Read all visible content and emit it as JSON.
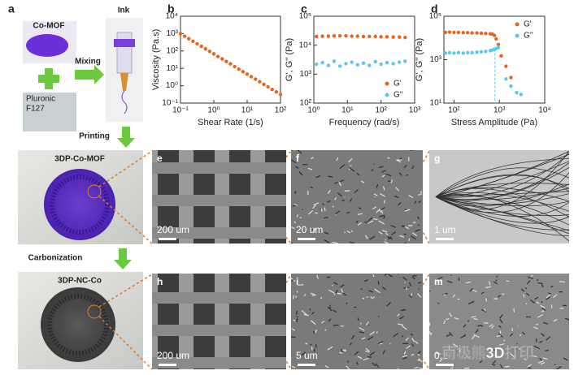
{
  "panel_a": {
    "label": "a",
    "co_mof": "Co-MOF",
    "pluronic": [
      "Pluronic",
      "F127"
    ],
    "mixing": "Mixing",
    "ink": "Ink",
    "printing": "Printing",
    "carbonization": "Carbonization",
    "sample1": "3DP-Co-MOF",
    "sample2": "3DP-NC-Co"
  },
  "chart_data": [
    {
      "type": "scatter",
      "label": "b",
      "x_label": "Shear Rate (1/s)",
      "y_label": "Viscosity (Pa.s)",
      "xscale": "log",
      "yscale": "log",
      "color": "#e8641e",
      "x": [
        0.1,
        0.133,
        0.178,
        0.237,
        0.316,
        0.422,
        0.562,
        0.75,
        1,
        1.33,
        1.78,
        2.37,
        3.16,
        4.22,
        5.62,
        7.5,
        10,
        13.3,
        17.8,
        23.7,
        31.6,
        42.2,
        56.2,
        75,
        100
      ],
      "values": [
        1000,
        714,
        510,
        364,
        260,
        186,
        133,
        95,
        68,
        48,
        35,
        25,
        18,
        12.6,
        9,
        6.4,
        4.6,
        3.3,
        2.4,
        1.7,
        1.2,
        0.86,
        0.61,
        0.44,
        0.31
      ],
      "xlim": [
        0.1,
        100
      ],
      "ylim": [
        0.1,
        10000
      ],
      "xticks": [
        {
          "value": 0.1,
          "label": "10⁻¹"
        },
        {
          "value": 1,
          "label": "10⁰"
        },
        {
          "value": 10,
          "label": "10¹"
        },
        {
          "value": 100,
          "label": "10²"
        }
      ],
      "yticks": [
        {
          "value": 0.1,
          "label": "10⁻¹"
        },
        {
          "value": 1,
          "label": "10⁰"
        },
        {
          "value": 10,
          "label": "10¹"
        },
        {
          "value": 100,
          "label": "10²"
        },
        {
          "value": 1000,
          "label": "10³"
        },
        {
          "value": 10000,
          "label": "10⁴"
        }
      ]
    },
    {
      "type": "scatter",
      "label": "c",
      "x_label": "Frequency (rad/s)",
      "y_label": "G', G'' (Pa)",
      "xscale": "log",
      "yscale": "log",
      "legend": "lower right",
      "x": [
        1.2,
        1.8,
        2.7,
        4,
        6,
        9,
        13.5,
        20,
        30,
        45,
        68,
        100,
        150,
        230,
        350,
        520
      ],
      "series": [
        {
          "name": "G'",
          "color": "#e8641e",
          "values": [
            20000,
            20500,
            20500,
            21000,
            21000,
            21000,
            20500,
            20500,
            20000,
            20000,
            20000,
            19500,
            19500,
            19000,
            19000,
            18500
          ]
        },
        {
          "name": "G''",
          "color": "#5bc8e8",
          "values": [
            2200,
            2500,
            2000,
            2800,
            1900,
            2300,
            2600,
            2100,
            2400,
            2000,
            2700,
            2200,
            2500,
            2300,
            2600,
            2800
          ]
        }
      ],
      "xlim": [
        1,
        1000
      ],
      "ylim": [
        100,
        100000
      ],
      "xticks": [
        {
          "value": 1,
          "label": "10⁰"
        },
        {
          "value": 10,
          "label": "10¹"
        },
        {
          "value": 100,
          "label": "10²"
        },
        {
          "value": 1000,
          "label": "10³"
        }
      ],
      "yticks": [
        {
          "value": 100,
          "label": "10²"
        },
        {
          "value": 1000,
          "label": "10³"
        },
        {
          "value": 10000,
          "label": "10⁴"
        },
        {
          "value": 100000,
          "label": "10⁵"
        }
      ]
    },
    {
      "type": "scatter",
      "label": "d",
      "x_label": "Stress Amplitude (Pa)",
      "y_label": "G', G'' (Pa)",
      "xscale": "log",
      "yscale": "log",
      "legend": "upper right",
      "crossover_x": 800,
      "x": [
        65,
        80,
        100,
        125,
        160,
        200,
        250,
        320,
        400,
        500,
        630,
        700,
        780,
        850,
        950,
        1100,
        1400,
        1800,
        2400,
        3000
      ],
      "series": [
        {
          "name": "G'",
          "color": "#e8641e",
          "values": [
            18000,
            18500,
            18000,
            18000,
            17500,
            17500,
            17000,
            17000,
            16500,
            16000,
            15500,
            15000,
            13000,
            9000,
            5000,
            1500,
            500,
            150,
            null,
            null
          ]
        },
        {
          "name": "G''",
          "color": "#5bc8e8",
          "values": [
            2000,
            2100,
            2000,
            2100,
            2000,
            2100,
            2100,
            2200,
            2300,
            2400,
            2600,
            2800,
            3000,
            3200,
            3600,
            null,
            130,
            60,
            30,
            25
          ]
        }
      ],
      "xlim": [
        60,
        10000
      ],
      "ylim": [
        10,
        100000
      ],
      "xticks": [
        {
          "value": 100,
          "label": "10²"
        },
        {
          "value": 1000,
          "label": "10³"
        },
        {
          "value": 10000,
          "label": "10⁴"
        }
      ],
      "yticks": [
        {
          "value": 10,
          "label": "10¹"
        },
        {
          "value": 1000,
          "label": "10³"
        },
        {
          "value": 100000,
          "label": "10⁵"
        }
      ]
    }
  ],
  "micrographs": [
    {
      "label": "e",
      "scale": "200 um"
    },
    {
      "label": "f",
      "scale": "20 um"
    },
    {
      "label": "g",
      "scale": "1 um"
    },
    {
      "label": "h",
      "scale": "200 um"
    },
    {
      "label": "i",
      "scale": "5 um"
    },
    {
      "label": "m",
      "scale": "0.2"
    }
  ],
  "watermark": "南极熊3D打印"
}
